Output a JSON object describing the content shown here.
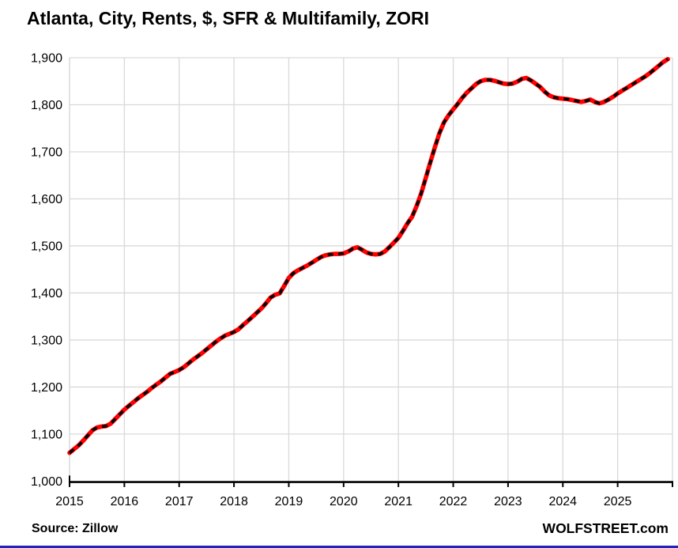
{
  "title": "Atlanta, City, Rents, $, SFR & Multifamily, ZORI",
  "source": "Source: Zillow",
  "watermark": "WOLFSTREET.com",
  "colors": {
    "line_red": "#ff0000",
    "dash_black": "#000000",
    "gridline": "#d9d9d9",
    "axis": "#000000",
    "text": "#000000",
    "bottom_rule_blue": "#2323bb",
    "background": "#ffffff"
  },
  "chart_data": {
    "type": "line",
    "title": "Atlanta, City, Rents, $, SFR & Multifamily, ZORI",
    "xlabel": "",
    "ylabel": "",
    "grid": true,
    "legend": "none",
    "x_axis": {
      "range": [
        2015,
        2026
      ],
      "tick_labels": [
        "2015",
        "2016",
        "2017",
        "2018",
        "2019",
        "2020",
        "2021",
        "2022",
        "2023",
        "2024",
        "2025"
      ]
    },
    "y_axis": {
      "range": [
        1000,
        1900
      ],
      "tick_step": 100,
      "tick_labels": [
        "1,000",
        "1,100",
        "1,200",
        "1,300",
        "1,400",
        "1,500",
        "1,600",
        "1,700",
        "1,800",
        "1,900"
      ]
    },
    "series": [
      {
        "name": "ZORI rent, $, SFR & Multifamily, Atlanta City",
        "style": "thick red line overlaid with black dashes",
        "x_start_year": 2015,
        "frequency": "monthly",
        "values": [
          1060,
          1068,
          1076,
          1086,
          1097,
          1108,
          1114,
          1116,
          1117,
          1122,
          1132,
          1142,
          1152,
          1160,
          1168,
          1176,
          1183,
          1190,
          1198,
          1205,
          1212,
          1220,
          1228,
          1232,
          1236,
          1242,
          1250,
          1258,
          1265,
          1272,
          1280,
          1288,
          1296,
          1303,
          1309,
          1313,
          1317,
          1323,
          1332,
          1340,
          1349,
          1358,
          1367,
          1378,
          1390,
          1396,
          1399,
          1415,
          1432,
          1442,
          1448,
          1453,
          1458,
          1464,
          1470,
          1476,
          1480,
          1482,
          1483,
          1483,
          1484,
          1488,
          1494,
          1497,
          1492,
          1486,
          1483,
          1482,
          1483,
          1488,
          1497,
          1507,
          1517,
          1532,
          1548,
          1562,
          1585,
          1612,
          1645,
          1678,
          1710,
          1740,
          1763,
          1778,
          1790,
          1802,
          1815,
          1826,
          1835,
          1844,
          1850,
          1853,
          1853,
          1851,
          1848,
          1845,
          1844,
          1845,
          1849,
          1855,
          1857,
          1852,
          1845,
          1838,
          1828,
          1820,
          1816,
          1814,
          1813,
          1812,
          1810,
          1808,
          1806,
          1808,
          1811,
          1806,
          1803,
          1806,
          1811,
          1817,
          1824,
          1830,
          1836,
          1842,
          1848,
          1854,
          1860,
          1867,
          1875,
          1883,
          1891,
          1897
        ]
      }
    ]
  }
}
